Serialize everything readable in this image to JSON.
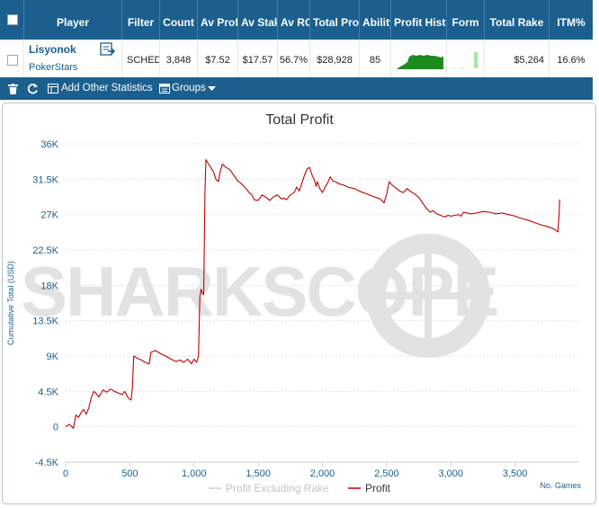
{
  "table": {
    "headers": {
      "select_all": "",
      "player": "Player",
      "filter": "Filter",
      "count": "Count",
      "av_profit": "Av Profit",
      "av_stake": "Av Stake",
      "av_roi": "Av ROI",
      "total_profit": "Total Profit",
      "ability": "Ability",
      "profit_history": "Profit History",
      "form": "Form",
      "total_rake": "Total Rake",
      "itm": "ITM%"
    },
    "row": {
      "player_name": "Lisyonok",
      "network": "PokerStars",
      "filter": "SCHEDULED",
      "count": "3,848",
      "av_profit": "$7.52",
      "av_stake": "$17.57",
      "av_roi": "56.7%",
      "total_profit": "$28,928",
      "ability": "85",
      "total_rake": "$5,264",
      "itm": "16.6%"
    }
  },
  "toolbar": {
    "add_stats_label": "Add Other Statistics",
    "groups_label": "Groups"
  },
  "chart": {
    "watermark": "SHARKSCOPE",
    "corner_label": "No. Games"
  },
  "colors": {
    "header_bg": "#1b5f8f",
    "profit_line": "#c00000",
    "profit_ex_rake_line": "#cccccc",
    "history_bar": "#1e8a1e",
    "form_bar": "#a6e6a6"
  },
  "chart_data": {
    "type": "line",
    "title": "Total Profit",
    "xlabel": "",
    "ylabel": "Cumulative Total (USD)",
    "xlim": [
      0,
      4000
    ],
    "ylim": [
      -4500,
      36000
    ],
    "xticks": [
      0,
      500,
      1000,
      1500,
      2000,
      2500,
      3000,
      3500
    ],
    "xtick_labels": [
      "0",
      "500",
      "1,000",
      "1,500",
      "2,000",
      "2,500",
      "3,000",
      "3,500"
    ],
    "yticks": [
      -4500,
      0,
      4500,
      9000,
      13500,
      18000,
      22500,
      27000,
      31500,
      36000
    ],
    "ytick_labels": [
      "-4.5K",
      "0",
      "4.5K",
      "9K",
      "13.5K",
      "18K",
      "22.5K",
      "27K",
      "31.5K",
      "36K"
    ],
    "legend_position": "bottom",
    "grid": true,
    "series": [
      {
        "name": "Profit Excluding Rake",
        "color": "#cccccc",
        "points": []
      },
      {
        "name": "Profit",
        "color": "#c00000",
        "points": [
          [
            0,
            0
          ],
          [
            30,
            300
          ],
          [
            60,
            -200
          ],
          [
            80,
            1500
          ],
          [
            100,
            1200
          ],
          [
            120,
            1800
          ],
          [
            140,
            2200
          ],
          [
            160,
            1600
          ],
          [
            180,
            2400
          ],
          [
            200,
            3700
          ],
          [
            220,
            4500
          ],
          [
            240,
            4200
          ],
          [
            260,
            3800
          ],
          [
            290,
            4700
          ],
          [
            320,
            4400
          ],
          [
            350,
            4800
          ],
          [
            380,
            4500
          ],
          [
            410,
            4300
          ],
          [
            440,
            4100
          ],
          [
            460,
            4500
          ],
          [
            490,
            3600
          ],
          [
            510,
            3400
          ],
          [
            520,
            5000
          ],
          [
            530,
            9000
          ],
          [
            560,
            8700
          ],
          [
            590,
            8500
          ],
          [
            620,
            8200
          ],
          [
            650,
            8000
          ],
          [
            665,
            9500
          ],
          [
            700,
            9700
          ],
          [
            740,
            9300
          ],
          [
            780,
            9000
          ],
          [
            820,
            8600
          ],
          [
            860,
            8300
          ],
          [
            890,
            8500
          ],
          [
            920,
            8200
          ],
          [
            950,
            8600
          ],
          [
            980,
            8000
          ],
          [
            1000,
            8600
          ],
          [
            1020,
            8200
          ],
          [
            1035,
            9000
          ],
          [
            1045,
            16500
          ],
          [
            1055,
            17500
          ],
          [
            1065,
            17000
          ],
          [
            1075,
            16800
          ],
          [
            1085,
            30000
          ],
          [
            1093,
            34000
          ],
          [
            1110,
            33500
          ],
          [
            1130,
            33000
          ],
          [
            1150,
            32500
          ],
          [
            1170,
            31500
          ],
          [
            1190,
            31200
          ],
          [
            1200,
            32200
          ],
          [
            1220,
            33400
          ],
          [
            1250,
            33000
          ],
          [
            1280,
            32700
          ],
          [
            1310,
            32000
          ],
          [
            1340,
            31300
          ],
          [
            1370,
            30900
          ],
          [
            1400,
            30400
          ],
          [
            1430,
            29800
          ],
          [
            1450,
            29500
          ],
          [
            1470,
            28900
          ],
          [
            1500,
            28800
          ],
          [
            1530,
            29500
          ],
          [
            1560,
            29200
          ],
          [
            1590,
            28800
          ],
          [
            1620,
            29300
          ],
          [
            1650,
            29500
          ],
          [
            1680,
            29000
          ],
          [
            1700,
            29100
          ],
          [
            1720,
            28900
          ],
          [
            1750,
            29500
          ],
          [
            1780,
            29800
          ],
          [
            1800,
            30500
          ],
          [
            1820,
            30000
          ],
          [
            1840,
            31000
          ],
          [
            1860,
            32000
          ],
          [
            1880,
            32800
          ],
          [
            1900,
            33000
          ],
          [
            1920,
            32000
          ],
          [
            1940,
            31300
          ],
          [
            1950,
            30600
          ],
          [
            1960,
            31200
          ],
          [
            1980,
            30300
          ],
          [
            2000,
            29800
          ],
          [
            2020,
            30500
          ],
          [
            2040,
            31000
          ],
          [
            2060,
            31800
          ],
          [
            2080,
            31300
          ],
          [
            2100,
            31200
          ],
          [
            2130,
            30900
          ],
          [
            2160,
            30800
          ],
          [
            2200,
            30500
          ],
          [
            2250,
            30300
          ],
          [
            2300,
            29900
          ],
          [
            2350,
            29600
          ],
          [
            2400,
            29300
          ],
          [
            2450,
            29000
          ],
          [
            2480,
            28500
          ],
          [
            2500,
            29600
          ],
          [
            2520,
            31200
          ],
          [
            2540,
            30800
          ],
          [
            2570,
            30400
          ],
          [
            2600,
            30000
          ],
          [
            2630,
            29800
          ],
          [
            2660,
            30300
          ],
          [
            2690,
            29900
          ],
          [
            2720,
            29600
          ],
          [
            2750,
            29200
          ],
          [
            2780,
            28500
          ],
          [
            2810,
            27800
          ],
          [
            2840,
            27300
          ],
          [
            2860,
            27500
          ],
          [
            2890,
            27100
          ],
          [
            2920,
            26900
          ],
          [
            2950,
            26700
          ],
          [
            2980,
            26900
          ],
          [
            3000,
            26800
          ],
          [
            3030,
            26900
          ],
          [
            3060,
            27000
          ],
          [
            3080,
            26800
          ],
          [
            3100,
            27300
          ],
          [
            3150,
            27100
          ],
          [
            3200,
            27200
          ],
          [
            3250,
            27400
          ],
          [
            3300,
            27300
          ],
          [
            3350,
            27100
          ],
          [
            3400,
            27200
          ],
          [
            3450,
            27000
          ],
          [
            3500,
            26800
          ],
          [
            3550,
            26500
          ],
          [
            3600,
            26300
          ],
          [
            3650,
            26000
          ],
          [
            3700,
            25700
          ],
          [
            3750,
            25500
          ],
          [
            3800,
            25200
          ],
          [
            3835,
            24800
          ],
          [
            3843,
            27000
          ],
          [
            3848,
            28928
          ]
        ]
      }
    ]
  }
}
